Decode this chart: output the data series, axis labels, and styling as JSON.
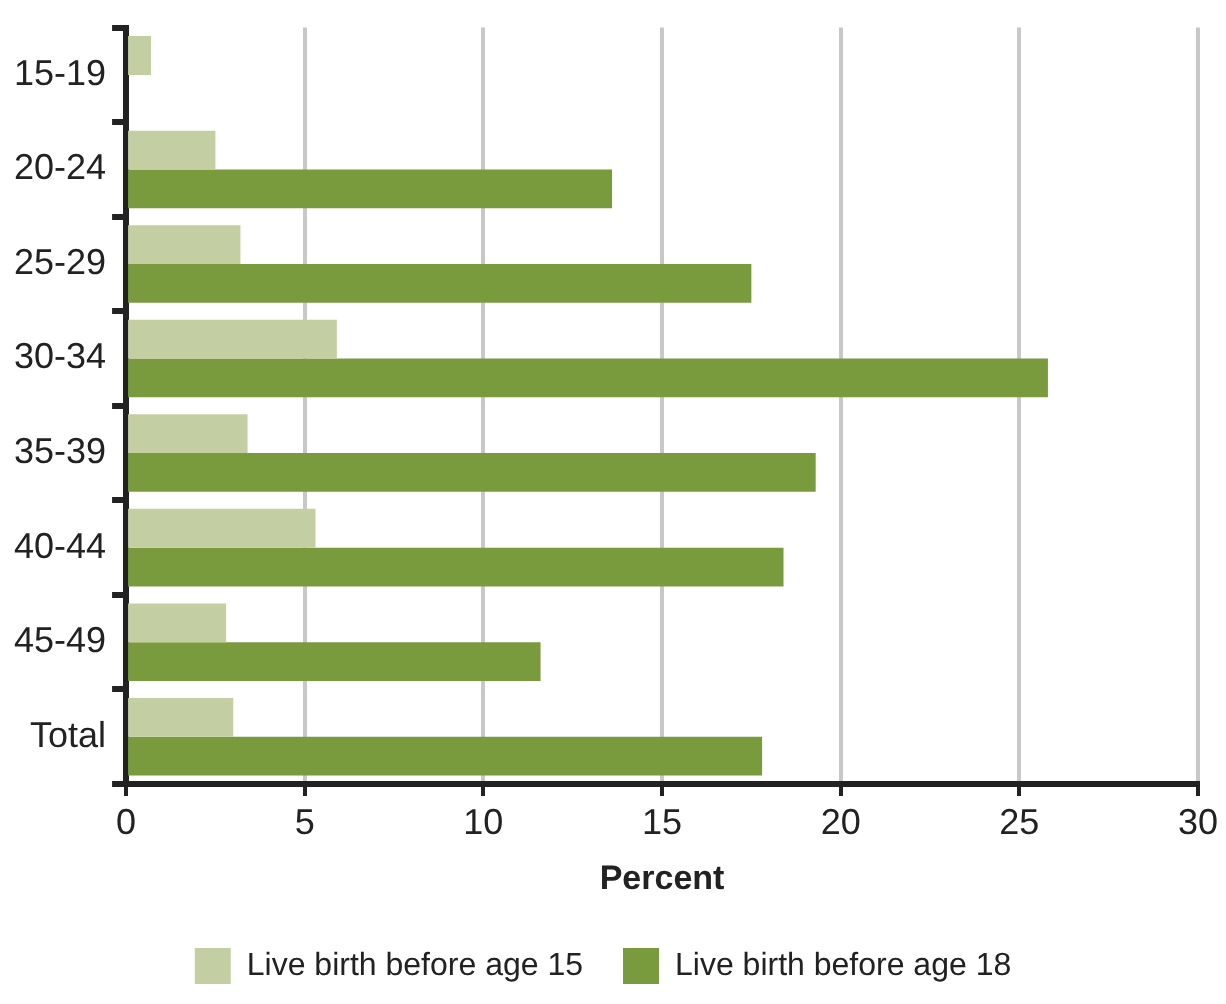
{
  "chart_data": {
    "type": "bar",
    "orientation": "horizontal",
    "xlabel": "Percent",
    "categories": [
      "15-19",
      "20-24",
      "25-29",
      "30-34",
      "35-39",
      "40-44",
      "45-49",
      "Total"
    ],
    "series": [
      {
        "name": "Live birth before age 15",
        "color": "#c3cfa3",
        "values": [
          0.7,
          2.5,
          3.2,
          5.9,
          3.4,
          5.3,
          2.8,
          3.0
        ]
      },
      {
        "name": "Live birth before age 18",
        "color": "#7a9a3e",
        "values": [
          null,
          13.6,
          17.5,
          25.8,
          19.3,
          18.4,
          11.6,
          17.8
        ]
      }
    ],
    "xlim": [
      0,
      30
    ],
    "xticks": [
      0,
      5,
      10,
      15,
      20,
      25,
      30
    ],
    "grid": "x",
    "legend": "bottom"
  }
}
